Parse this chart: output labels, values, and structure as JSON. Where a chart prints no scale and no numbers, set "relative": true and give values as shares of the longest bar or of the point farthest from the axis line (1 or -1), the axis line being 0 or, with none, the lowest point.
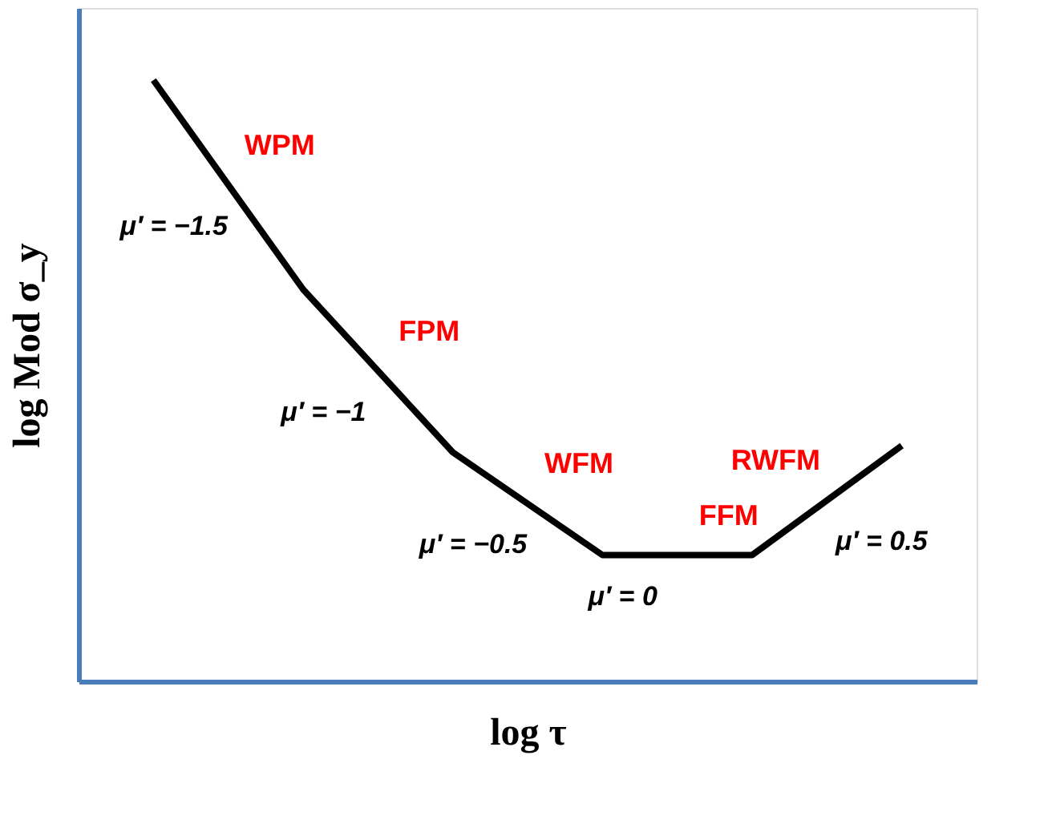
{
  "chart_data": {
    "type": "line",
    "relative": true,
    "xlabel": "log τ",
    "ylabel": "log Mod σ_y",
    "categories": [
      null,
      null,
      null,
      null,
      null,
      null
    ],
    "tick_labels": false,
    "grid": false,
    "marker": "none",
    "line_style": "solid",
    "series": [
      {
        "color": "#000000",
        "values": [
          1,
          0.652,
          0.381,
          0.21,
          0.21,
          0.392
        ]
      }
    ],
    "annotations": [
      "WPM",
      "μ′ = −1.5",
      "FPM",
      "μ′ = −1",
      "WFM",
      "μ′ = −0.5",
      "FFM",
      "μ′ = 0",
      "RWFM",
      "μ′ = 0.5"
    ]
  }
}
